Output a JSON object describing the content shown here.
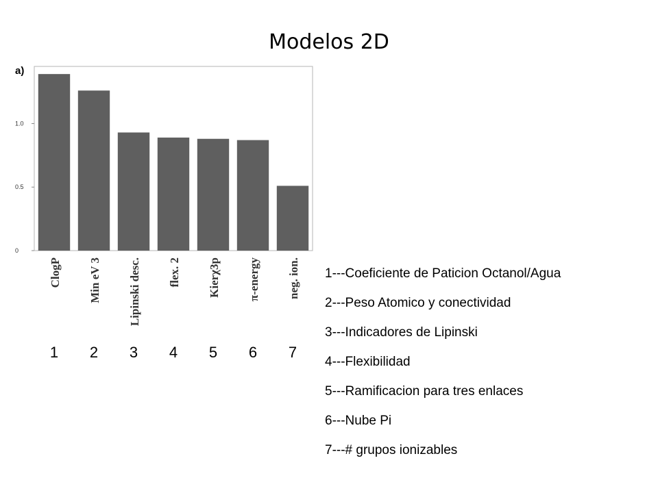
{
  "title": "Modelos 2D",
  "chart_data": {
    "type": "bar",
    "panel_label": "a)",
    "categories": [
      "ClogP",
      "Min eV 3",
      "Lipinski desc.",
      "flex. 2",
      "Kierχ3p",
      "π-energy",
      "neg. ion."
    ],
    "values": [
      1.39,
      1.26,
      0.93,
      0.89,
      0.88,
      0.87,
      0.51
    ],
    "yticks": [
      0,
      0.5,
      1.0
    ],
    "ytick_labels": [
      "0",
      "0.5",
      "1.0"
    ],
    "ylim": [
      0,
      1.45
    ],
    "bar_color": "#5f5f5f",
    "xlabel": "",
    "ylabel": ""
  },
  "bar_numbers": [
    "1",
    "2",
    "3",
    "4",
    "5",
    "6",
    "7"
  ],
  "legend": [
    "1---Coeficiente de Paticion Octanol/Agua",
    "2---Peso Atomico y conectividad",
    "3---Indicadores de Lipinski",
    "4---Flexibilidad",
    "5---Ramificacion para tres enlaces",
    "6---Nube Pi",
    "7---# grupos ionizables"
  ]
}
